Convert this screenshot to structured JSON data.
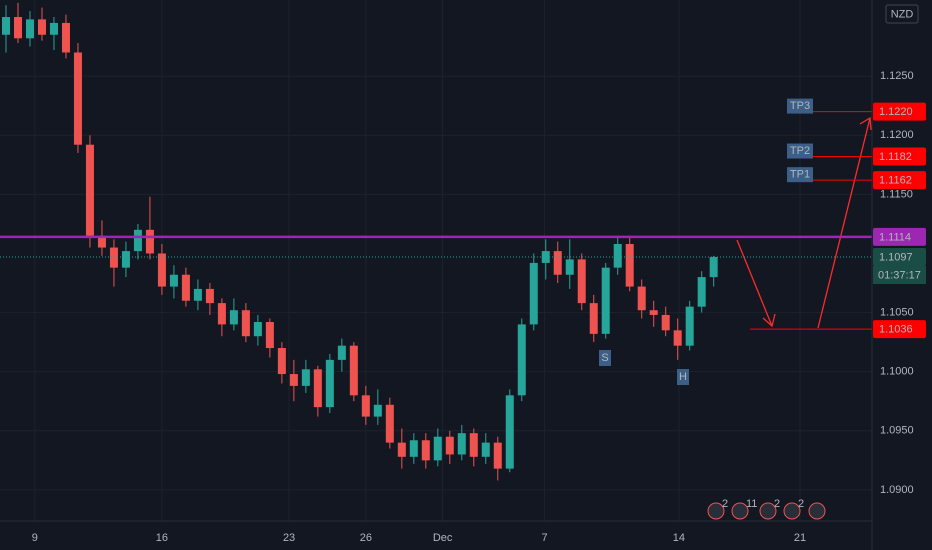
{
  "chart_data": {
    "type": "candlestick",
    "currency": "NZD",
    "up_color": "#26a69a",
    "down_color": "#ef5350",
    "grid": true,
    "x": [
      0,
      1,
      2,
      3,
      4,
      5,
      6,
      7,
      8,
      9,
      10,
      11,
      12,
      13,
      14,
      15,
      16,
      17,
      18,
      19,
      20,
      21,
      22,
      23,
      24,
      25,
      26,
      27,
      28,
      29,
      30,
      31,
      32,
      33,
      34,
      35,
      36,
      37,
      38,
      39,
      40,
      41,
      42,
      43,
      44,
      45,
      46,
      47,
      48,
      49,
      50,
      51,
      52,
      53,
      54,
      55,
      56,
      57,
      58,
      59
    ],
    "open": [
      1.1285,
      1.13,
      1.1282,
      1.1298,
      1.1285,
      1.1295,
      1.127,
      1.1192,
      1.1115,
      1.1105,
      1.1088,
      1.1102,
      1.112,
      1.11,
      1.1072,
      1.1082,
      1.106,
      1.107,
      1.1058,
      1.104,
      1.1052,
      1.103,
      1.1042,
      1.102,
      1.0998,
      1.0988,
      1.1002,
      1.097,
      1.101,
      1.1022,
      1.098,
      1.0962,
      1.0972,
      1.094,
      1.0928,
      1.0942,
      1.0925,
      1.0945,
      1.093,
      1.0948,
      1.0928,
      1.094,
      1.0918,
      1.098,
      1.104,
      1.1092,
      1.1102,
      1.1082,
      1.1095,
      1.1058,
      1.1032,
      1.1088,
      1.1108,
      1.1072,
      1.1052,
      1.1048,
      1.1035,
      1.1022,
      1.1055,
      1.108
    ],
    "high": [
      1.131,
      1.1312,
      1.1305,
      1.1308,
      1.13,
      1.1302,
      1.1278,
      1.12,
      1.1128,
      1.1112,
      1.111,
      1.1125,
      1.1148,
      1.1108,
      1.109,
      1.1088,
      1.1078,
      1.1075,
      1.1062,
      1.1062,
      1.1058,
      1.1048,
      1.1045,
      1.1025,
      1.101,
      1.101,
      1.1005,
      1.1015,
      1.1028,
      1.1025,
      1.0988,
      1.0985,
      1.0978,
      1.0952,
      1.0948,
      1.0948,
      1.0952,
      1.095,
      1.0955,
      1.0952,
      1.0948,
      1.0945,
      1.0985,
      1.1045,
      1.11,
      1.1112,
      1.111,
      1.1112,
      1.11,
      1.1065,
      1.1092,
      1.1115,
      1.1115,
      1.1078,
      1.106,
      1.1055,
      1.1045,
      1.106,
      1.1085,
      1.1098
    ],
    "low": [
      1.127,
      1.1278,
      1.1275,
      1.128,
      1.1272,
      1.1265,
      1.1185,
      1.1105,
      1.1098,
      1.1072,
      1.108,
      1.1095,
      1.1095,
      1.1065,
      1.1062,
      1.1055,
      1.1052,
      1.1048,
      1.103,
      1.1035,
      1.1025,
      1.1022,
      1.1012,
      1.099,
      1.0975,
      1.0982,
      1.0962,
      1.0965,
      1.1,
      1.0975,
      1.0955,
      1.0955,
      1.0935,
      1.0918,
      1.0922,
      1.0918,
      1.092,
      1.0922,
      1.0925,
      1.092,
      1.0922,
      1.0908,
      1.0915,
      1.0975,
      1.1035,
      1.1078,
      1.1075,
      1.107,
      1.1052,
      1.1025,
      1.1028,
      1.1082,
      1.1068,
      1.1045,
      1.1038,
      1.103,
      1.101,
      1.1018,
      1.105,
      1.1072
    ],
    "close": [
      1.13,
      1.1282,
      1.1298,
      1.1285,
      1.1295,
      1.127,
      1.1192,
      1.1115,
      1.1105,
      1.1088,
      1.1102,
      1.112,
      1.11,
      1.1072,
      1.1082,
      1.106,
      1.107,
      1.1058,
      1.104,
      1.1052,
      1.103,
      1.1042,
      1.102,
      1.0998,
      1.0988,
      1.1002,
      1.097,
      1.101,
      1.1022,
      1.098,
      1.0962,
      1.0972,
      1.094,
      1.0928,
      1.0942,
      1.0925,
      1.0945,
      1.093,
      1.0948,
      1.0928,
      1.094,
      1.0918,
      1.098,
      1.104,
      1.1092,
      1.1102,
      1.1082,
      1.1095,
      1.1058,
      1.1032,
      1.1088,
      1.1108,
      1.1072,
      1.1052,
      1.1048,
      1.1035,
      1.1022,
      1.1055,
      1.108,
      1.1097
    ],
    "xlim": [
      -0.5,
      72.2
    ],
    "ylim": [
      1.08737,
      1.13144
    ],
    "xticks": [
      {
        "value": 2.4,
        "label": "9"
      },
      {
        "value": 13,
        "label": "16"
      },
      {
        "value": 23.6,
        "label": "23"
      },
      {
        "value": 30,
        "label": "26"
      },
      {
        "value": 36.4,
        "label": "Dec"
      },
      {
        "value": 44.9,
        "label": "7"
      },
      {
        "value": 56.1,
        "label": "14"
      },
      {
        "value": 66.2,
        "label": "21"
      }
    ],
    "yticks": [
      {
        "value": 1.09,
        "label": "1.0900"
      },
      {
        "value": 1.095,
        "label": "1.0950"
      },
      {
        "value": 1.1,
        "label": "1.1000"
      },
      {
        "value": 1.105,
        "label": "1.1050"
      },
      {
        "value": 1.115,
        "label": "1.1150"
      },
      {
        "value": 1.12,
        "label": "1.1200"
      },
      {
        "value": 1.125,
        "label": "1.1250"
      }
    ],
    "price_lines": [
      {
        "value": 1.1114,
        "label": "1.1114",
        "color": "#9c27b0",
        "style": "full"
      },
      {
        "value": 1.1097,
        "label": "1.1097",
        "color": "#26a69a",
        "style": "dotted",
        "countdown": "01:37:17"
      },
      {
        "value": 1.122,
        "label": "1.1220",
        "color": "#ff0000",
        "style": "tag",
        "tag": "TP3"
      },
      {
        "value": 1.1182,
        "label": "1.1182",
        "color": "#ff0000",
        "style": "tag",
        "tag": "TP2"
      },
      {
        "value": 1.1162,
        "label": "1.1162",
        "color": "#ff0000",
        "style": "tag",
        "tag": "TP1"
      },
      {
        "value": 1.1036,
        "label": "1.1036",
        "color": "#ff0000",
        "style": "short"
      }
    ],
    "annotations": [
      "S",
      "H"
    ],
    "event_badges": [
      "2",
      "11",
      "2",
      "2"
    ]
  }
}
